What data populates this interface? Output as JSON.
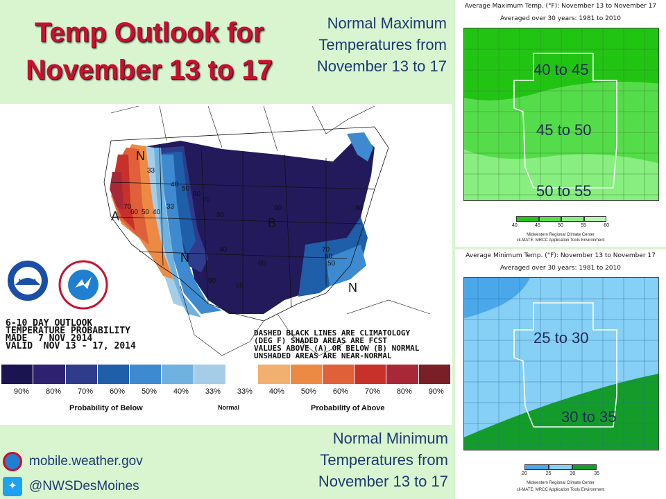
{
  "header": {
    "title_line1": "Temp Outlook for",
    "title_line2": "November 13 to 17"
  },
  "captions": {
    "max_caption": "Normal Maximum Temperatures from November 13 to 17",
    "min_caption": "Normal Minimum Temperatures from November 13 to 17"
  },
  "outlook_map": {
    "info_block": "6-10 DAY OUTLOOK\nTEMPERATURE PROBABILITY\nMADE  7 NOV 2014\nVALID  NOV 13 - 17, 2014",
    "legend_note": "DASHED BLACK LINES ARE CLIMATOLOGY\n(DEG F) SHADED AREAS ARE FCST\nVALUES ABOVE (A) OR BELOW (B) NORMAL\nUNSHADED AREAS ARE NEAR-NORMAL",
    "legend_ticks": [
      "90%",
      "80%",
      "70%",
      "60%",
      "50%",
      "40%",
      "33%",
      "33%",
      "40%",
      "50%",
      "60%",
      "70%",
      "80%",
      "90%"
    ],
    "legend_colors": [
      "#1a1450",
      "#2e2270",
      "#2f3c8c",
      "#1f5ea8",
      "#3d8ad0",
      "#6fb2e0",
      "#a6cde8",
      "#ffffff",
      "#f2b070",
      "#ec8a44",
      "#e0603a",
      "#c8302a",
      "#a82838",
      "#7a1e28"
    ],
    "label_below": "Probability of Below",
    "label_normal": "Normal",
    "label_above": "Probability of Above",
    "region_labels": [
      "A",
      "B",
      "N",
      "N",
      "N"
    ],
    "contour_labels": [
      "70",
      "60",
      "50",
      "40",
      "33",
      "40",
      "50",
      "60",
      "70",
      "80",
      "90",
      "80",
      "33",
      "50",
      "60",
      "70",
      "80",
      "60",
      "50",
      "40"
    ]
  },
  "max_panel": {
    "title": "Average Maximum Temp. (°F): November 13 to November 17",
    "subtitle": "Averaged over 30 years: 1981 to 2010",
    "bands": [
      "40 to 45",
      "45 to 50",
      "50 to 55"
    ],
    "legend_ticks": [
      "40",
      "45",
      "50",
      "55",
      "60"
    ],
    "legend_colors": [
      "#22c414",
      "#55dc4a",
      "#88ee80",
      "#b6f7b0"
    ],
    "credit1": "Midwestern Regional Climate Center",
    "credit2": "cli-MATE: MRCC Application Tools Environment"
  },
  "min_panel": {
    "title": "Average Minimum Temp. (°F): November 13 to November 17",
    "subtitle": "Averaged over 30 years: 1981 to 2010",
    "bands": [
      "25 to 30",
      "30 to 35"
    ],
    "legend_ticks": [
      "20",
      "25",
      "30",
      "35"
    ],
    "legend_colors": [
      "#4aa8ea",
      "#86cff5",
      "#149c2a"
    ],
    "credit1": "Midwestern Regional Climate Center",
    "credit2": "cli-MATE: MRCC Application Tools Environment"
  },
  "footer": {
    "web": "mobile.weather.gov",
    "twitter": "@NWSDesMoines"
  },
  "logos": {
    "noaa": "NOAA",
    "nws": "NATIONAL WEATHER SERVICE"
  }
}
